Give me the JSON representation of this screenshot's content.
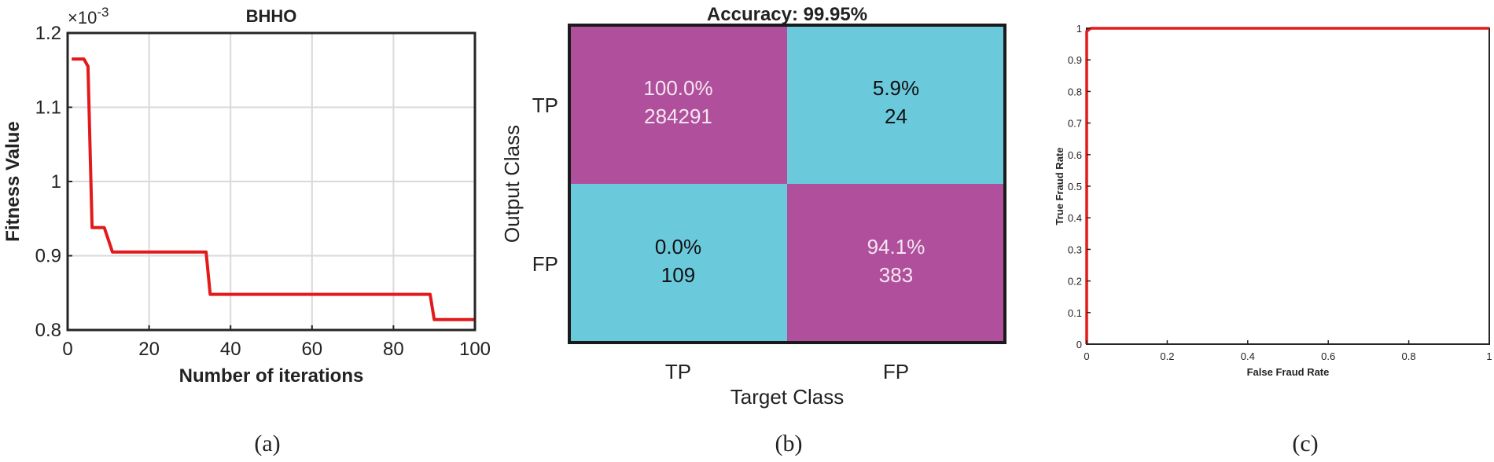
{
  "colors": {
    "line": "#e31a1c",
    "grid": "#d9d9d9",
    "axis": "#262626",
    "magenta": "#b0509c",
    "cyan": "#6bc9dc"
  },
  "captions": [
    "(a)",
    "(b)",
    "(c)"
  ],
  "chart_data": [
    {
      "type": "line",
      "title": "BHHO",
      "xlabel": "Number of iterations",
      "ylabel": "Fitness Value",
      "exponent_label": "×10",
      "exponent": "-3",
      "xlim": [
        0,
        100
      ],
      "ylim": [
        0.8,
        1.2
      ],
      "xticks": [
        0,
        20,
        40,
        60,
        80,
        100
      ],
      "yticks": [
        0.8,
        0.9,
        1,
        1.1,
        1.2
      ],
      "xtick_labels": [
        "0",
        "20",
        "40",
        "60",
        "80",
        "100"
      ],
      "ytick_labels": [
        "0.8",
        "0.9",
        "1",
        "1.1",
        "1.2"
      ],
      "grid": true,
      "series": [
        {
          "x": [
            1,
            4,
            5,
            6,
            9,
            11,
            34,
            35,
            89,
            90,
            100
          ],
          "y": [
            1.165,
            1.165,
            1.155,
            0.938,
            0.938,
            0.905,
            0.905,
            0.848,
            0.848,
            0.814,
            0.814
          ]
        }
      ]
    },
    {
      "type": "heatmap",
      "title": "Accuracy: 99.95%",
      "xlabel": "Target Class",
      "ylabel": "Output Class",
      "row_labels": [
        "TP",
        "FP"
      ],
      "col_labels": [
        "TP",
        "FP"
      ],
      "cells": [
        [
          {
            "pct": "100.0%",
            "count": "284291",
            "color": "magenta"
          },
          {
            "pct": "5.9%",
            "count": "24",
            "color": "cyan"
          }
        ],
        [
          {
            "pct": "0.0%",
            "count": "109",
            "color": "cyan"
          },
          {
            "pct": "94.1%",
            "count": "383",
            "color": "magenta"
          }
        ]
      ]
    },
    {
      "type": "line",
      "title": "",
      "xlabel": "False Fraud Rate",
      "ylabel": "True Fraud Rate",
      "xlim": [
        0,
        1
      ],
      "ylim": [
        0,
        1
      ],
      "xticks": [
        0,
        0.2,
        0.4,
        0.6,
        0.8,
        1
      ],
      "yticks": [
        0,
        0.1,
        0.2,
        0.3,
        0.4,
        0.5,
        0.6,
        0.7,
        0.8,
        0.9,
        1
      ],
      "xtick_labels": [
        "0",
        "0.2",
        "0.4",
        "0.6",
        "0.8",
        "1"
      ],
      "ytick_labels": [
        "0",
        "0.1",
        "0.2",
        "0.3",
        "0.4",
        "0.5",
        "0.6",
        "0.7",
        "0.8",
        "0.9",
        "1"
      ],
      "grid": false,
      "series": [
        {
          "x": [
            0,
            0,
            0.01,
            1
          ],
          "y": [
            0,
            0.99,
            1,
            1
          ]
        }
      ]
    }
  ]
}
